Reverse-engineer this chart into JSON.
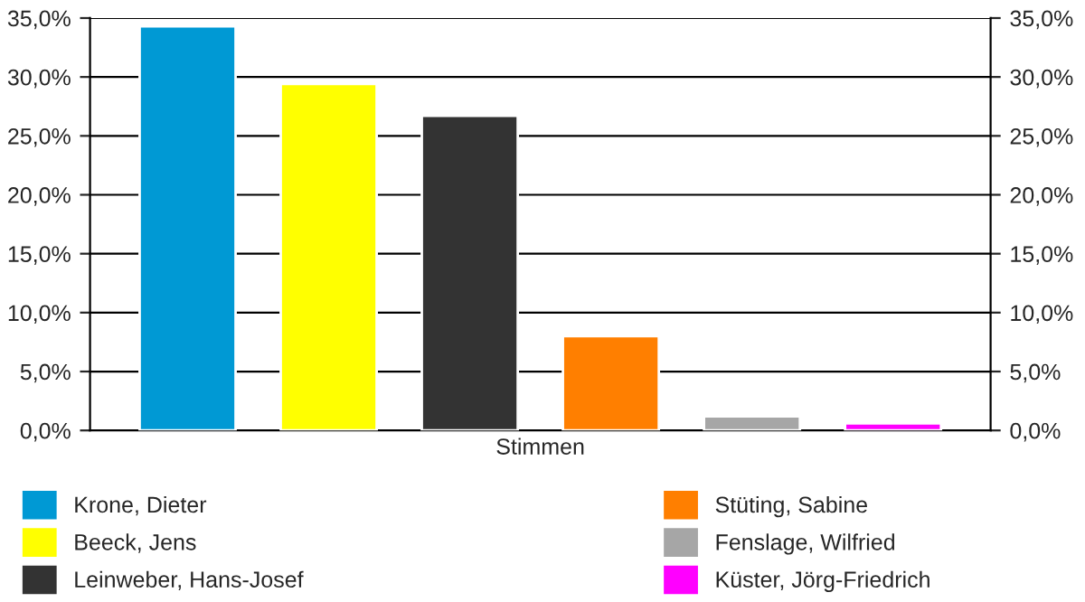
{
  "chart_data": {
    "type": "bar",
    "categories": [
      "Stimmen"
    ],
    "series": [
      {
        "name": "Krone, Dieter",
        "color": "#0099d4",
        "values": [
          34.3
        ]
      },
      {
        "name": "Beeck, Jens",
        "color": "#ffff00",
        "values": [
          29.4
        ]
      },
      {
        "name": "Leinweber, Hans-Josef",
        "color": "#333333",
        "values": [
          26.7
        ]
      },
      {
        "name": "Stüting, Sabine",
        "color": "#ff7f00",
        "values": [
          8.0
        ]
      },
      {
        "name": "Fenslage, Wilfried",
        "color": "#a6a6a6",
        "values": [
          1.2
        ]
      },
      {
        "name": "Küster, Jörg-Friedrich",
        "color": "#ff00ff",
        "values": [
          0.6
        ]
      }
    ],
    "ylim": [
      0,
      35
    ],
    "yticks": [
      {
        "value": 0,
        "label": "0,0%"
      },
      {
        "value": 5,
        "label": "5,0%"
      },
      {
        "value": 10,
        "label": "10,0%"
      },
      {
        "value": 15,
        "label": "15,0%"
      },
      {
        "value": 20,
        "label": "20,0%"
      },
      {
        "value": 25,
        "label": "25,0%"
      },
      {
        "value": 30,
        "label": "30,0%"
      },
      {
        "value": 35,
        "label": "35,0%"
      }
    ],
    "grid": "y",
    "legend": "bottom"
  }
}
